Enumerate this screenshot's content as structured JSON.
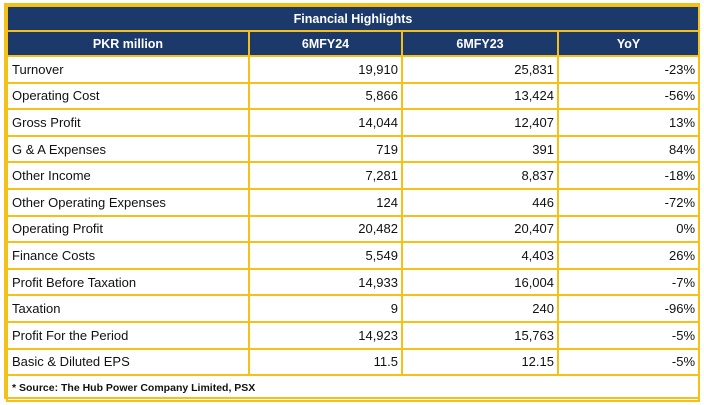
{
  "table": {
    "title": "Financial Highlights",
    "headers": [
      "PKR million",
      "6MFY24",
      "6MFY23",
      "YoY"
    ],
    "rows": [
      [
        "Turnover",
        "19,910",
        "25,831",
        "-23%"
      ],
      [
        "Operating Cost",
        "5,866",
        "13,424",
        "-56%"
      ],
      [
        "Gross Profit",
        "14,044",
        "12,407",
        "13%"
      ],
      [
        "G & A Expenses",
        "719",
        "391",
        "84%"
      ],
      [
        "Other Income",
        "7,281",
        "8,837",
        "-18%"
      ],
      [
        "Other Operating Expenses",
        "124",
        "446",
        "-72%"
      ],
      [
        "Operating Profit",
        "20,482",
        "20,407",
        "0%"
      ],
      [
        "Finance Costs",
        "5,549",
        "4,403",
        "26%"
      ],
      [
        "Profit Before Taxation",
        "14,933",
        "16,004",
        "-7%"
      ],
      [
        "Taxation",
        "9",
        "240",
        "-96%"
      ],
      [
        "Profit For the Period",
        "14,923",
        "15,763",
        "-5%"
      ],
      [
        "Basic & Diluted EPS",
        "11.5",
        "12.15",
        "-5%"
      ]
    ],
    "footnote": "* Source: The Hub Power Company Limited, PSX"
  },
  "colors": {
    "header_bg": "#1B3A6B",
    "border": "#F5C018"
  }
}
